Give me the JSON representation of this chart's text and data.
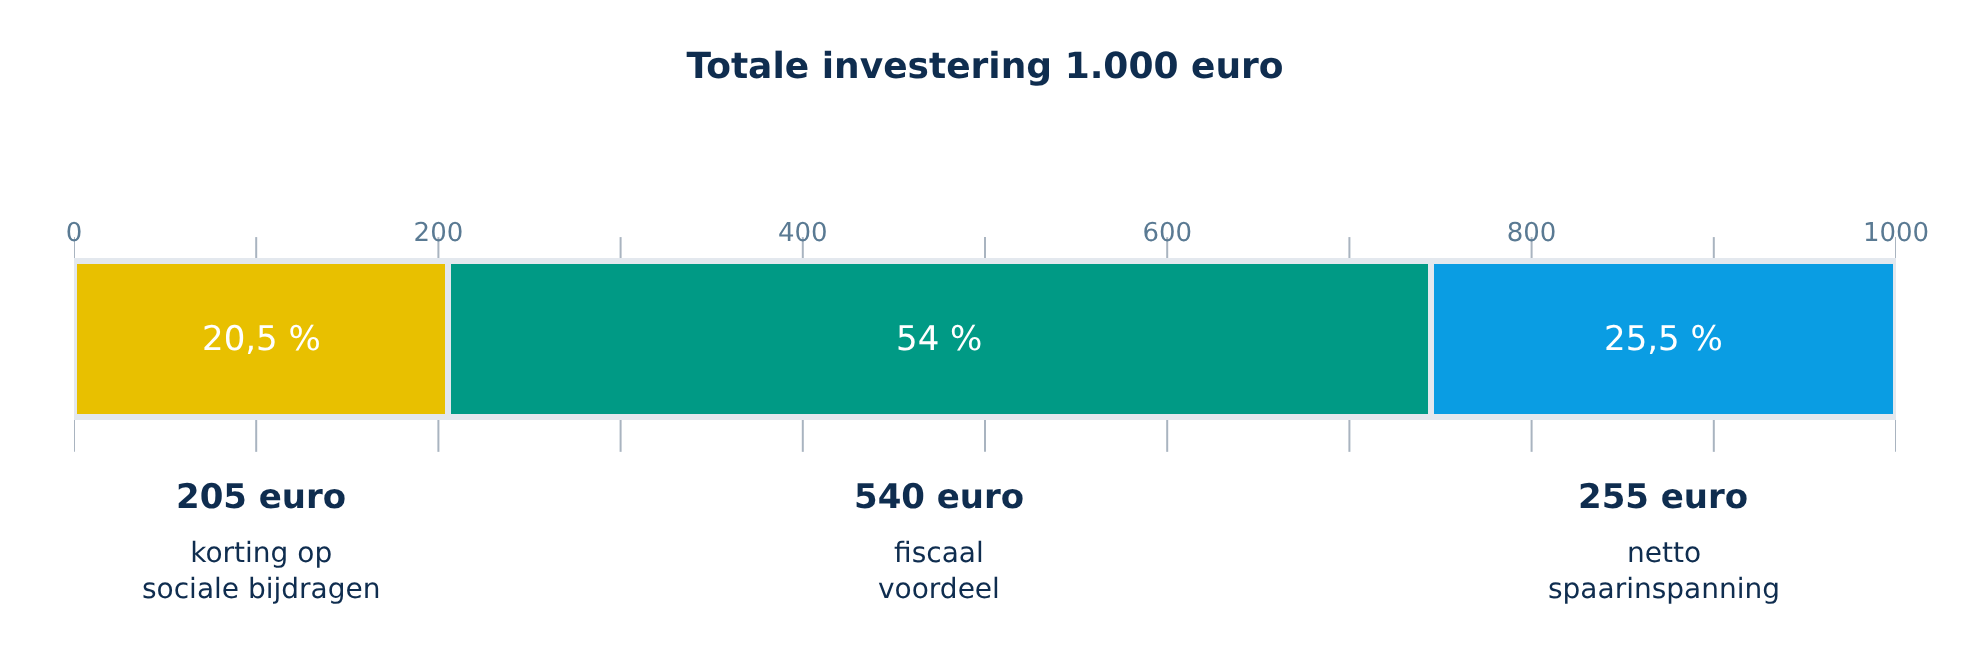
{
  "chart_data": {
    "type": "bar",
    "orientation": "horizontal",
    "stacked": true,
    "title": "Totale investering 1.000 euro",
    "categories": [
      null
    ],
    "series": [
      {
        "color": "#e8c000",
        "values": [
          205
        ]
      },
      {
        "color": "#009a85",
        "values": [
          540
        ]
      },
      {
        "color": "#0a9de3",
        "values": [
          255
        ]
      }
    ],
    "xlim": [
      0,
      1000
    ],
    "xticks": [
      0,
      {
        "value": 100,
        "label": null
      },
      200,
      {
        "value": 300,
        "label": null
      },
      400,
      {
        "value": 500,
        "label": null
      },
      600,
      {
        "value": 700,
        "label": null
      },
      800,
      {
        "value": 900,
        "label": null
      },
      1000
    ],
    "grid": "x",
    "annotations": [
      "20,5 %",
      "54 %",
      "25,5 %",
      "205 euro",
      "540 euro",
      "255 euro",
      "korting op\nsociale bijdragen",
      "fiscaal\nvoordeel",
      "netto\nspaarinspanning"
    ]
  }
}
